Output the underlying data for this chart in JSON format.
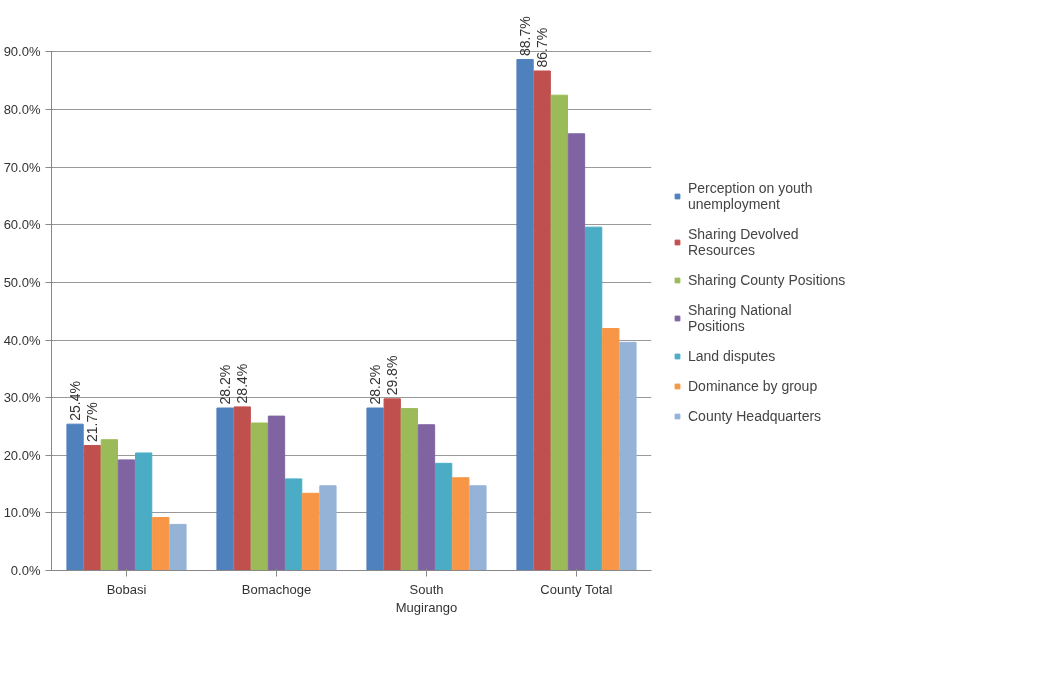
{
  "chart_data": {
    "type": "bar",
    "categories": [
      "Bobasi",
      "Bomachoge",
      "South Mugirango",
      "County Total"
    ],
    "series": [
      {
        "name": "Perception on youth unemployment",
        "color": "#4f81bd",
        "values": [
          25.4,
          28.2,
          28.2,
          88.7
        ],
        "value_labels": [
          "25.4%",
          "28.2%",
          "28.2%",
          "88.7%"
        ]
      },
      {
        "name": "Sharing Devolved Resources",
        "color": "#c0504d",
        "values": [
          21.7,
          28.4,
          29.8,
          86.7
        ],
        "value_labels": [
          "21.7%",
          "28.4%",
          "29.8%",
          "86.7%"
        ]
      },
      {
        "name": "Sharing County Positions",
        "color": "#9bbb59",
        "values": [
          22.7,
          25.6,
          28.1,
          82.5
        ]
      },
      {
        "name": "Sharing National Positions",
        "color": "#8064a2",
        "values": [
          19.2,
          26.8,
          25.3,
          75.8
        ]
      },
      {
        "name": "Land disputes",
        "color": "#4bacc6",
        "values": [
          20.4,
          15.9,
          18.6,
          59.6
        ]
      },
      {
        "name": "Dominance by group",
        "color": "#f79646",
        "values": [
          9.2,
          13.4,
          16.1,
          42.0
        ]
      },
      {
        "name": "County Headquarters",
        "color": "#95b3d7",
        "values": [
          8.0,
          14.7,
          14.7,
          39.6
        ]
      }
    ],
    "ylim": [
      0,
      90
    ],
    "yticks": [
      {
        "value": 0,
        "label": "0.0%"
      },
      {
        "value": 10,
        "label": "10.0%"
      },
      {
        "value": 20,
        "label": "20.0%"
      },
      {
        "value": 30,
        "label": "30.0%"
      },
      {
        "value": 40,
        "label": "40.0%"
      },
      {
        "value": 50,
        "label": "50.0%"
      },
      {
        "value": 60,
        "label": "60.0%"
      },
      {
        "value": 70,
        "label": "70.0%"
      },
      {
        "value": 80,
        "label": "80.0%"
      },
      {
        "value": 90,
        "label": "90.0%"
      }
    ],
    "grid": "y",
    "legend": "right"
  }
}
